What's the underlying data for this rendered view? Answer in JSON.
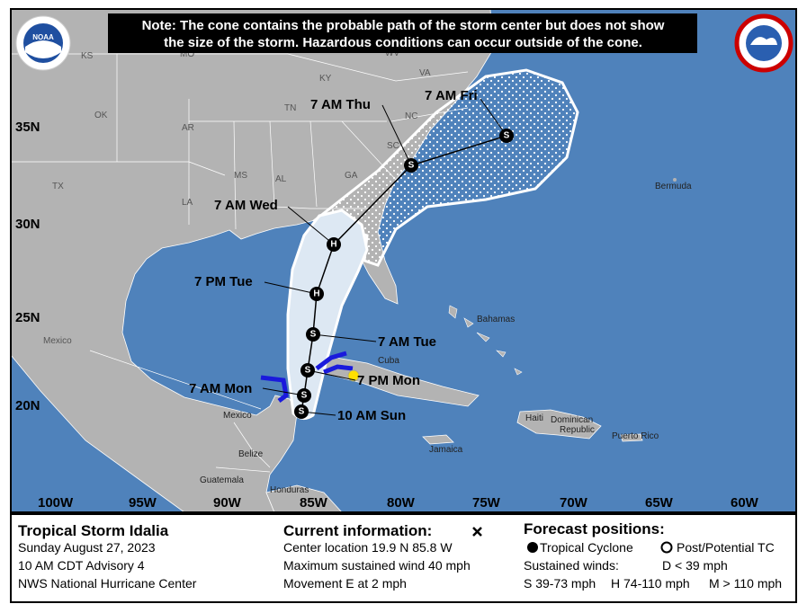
{
  "note": [
    "Note: The cone contains the probable path of the storm center but does not show",
    "the size of the storm. Hazardous conditions can occur outside of the cone."
  ],
  "logo": "NOAA",
  "lat_labels": [
    "35N",
    "30N",
    "25N",
    "20N"
  ],
  "lon_labels": [
    "100W",
    "95W",
    "90W",
    "85W",
    "80W",
    "75W",
    "70W",
    "65W",
    "60W"
  ],
  "places": [
    "KS",
    "MO",
    "KY",
    "WV",
    "VA",
    "OK",
    "AR",
    "TN",
    "NC",
    "SC",
    "MS",
    "AL",
    "GA",
    "TX",
    "LA",
    "Mexico",
    "Mexico",
    "Bahamas",
    "Cuba",
    "Bermuda",
    "Haiti",
    "Dominican",
    "Republic",
    "Puerto Rico",
    "Jamaica",
    "Belize",
    "Guatemala",
    "Honduras"
  ],
  "forecast_labels": [
    "10 AM Sun",
    "7 AM Mon",
    "7 PM Mon",
    "7 AM Tue",
    "7 PM Tue",
    "7 AM Wed",
    "7 AM Thu",
    "7 AM Fri"
  ],
  "points": [
    "S",
    "S",
    "S",
    "S",
    "H",
    "H",
    "S",
    "S"
  ],
  "info": {
    "title": "Tropical Storm Idalia",
    "date": "Sunday August 27, 2023",
    "advisory": "10 AM CDT Advisory 4",
    "center": "NWS National Hurricane Center",
    "current_heading": "Current information:",
    "center_location": "Center location 19.9 N 85.8 W",
    "max_wind": "Maximum sustained wind 40 mph",
    "movement": "Movement E at 2 mph",
    "forecast_heading": "Forecast positions:",
    "tropical_cyclone": "Tropical Cyclone",
    "post_tc": "Post/Potential TC",
    "sustained": "Sustained winds:",
    "d": "D < 39 mph",
    "s": "S 39-73 mph",
    "h": "H 74-110 mph",
    "m": "M > 110 mph"
  }
}
